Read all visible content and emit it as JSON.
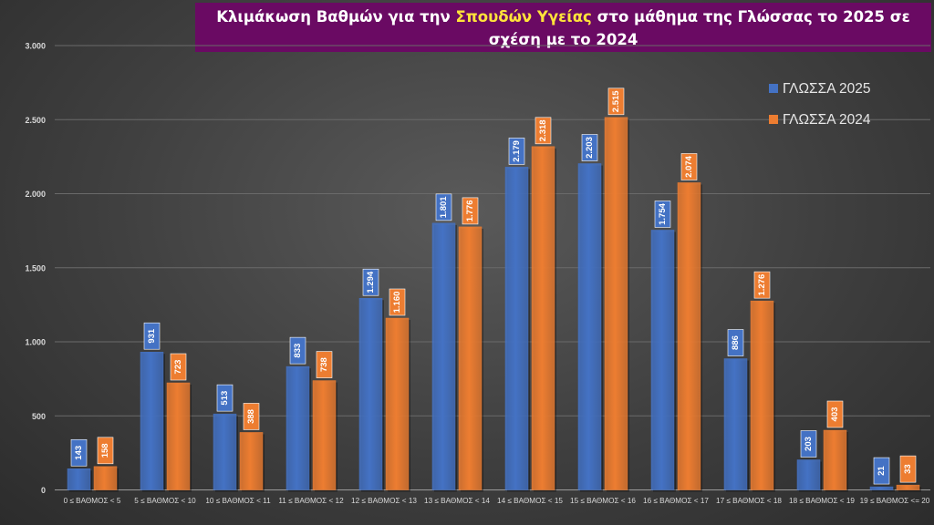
{
  "chart_data": {
    "type": "bar",
    "title_parts": {
      "before": "Κλιμάκωση Βαθμών για την ",
      "highlight": "Σπουδών Υγείας",
      "after": " στο μάθημα της Γλώσσας το 2025 σε σχέση με το 2024"
    },
    "categories": [
      "0 ≤ ΒΑΘΜΟΣ < 5",
      "5 ≤ ΒΑΘΜΟΣ < 10",
      "10 ≤ ΒΑΘΜΟΣ < 11",
      "11 ≤ ΒΑΘΜΟΣ < 12",
      "12 ≤ ΒΑΘΜΟΣ < 13",
      "13 ≤ ΒΑΘΜΟΣ < 14",
      "14 ≤ ΒΑΘΜΟΣ < 15",
      "15 ≤ ΒΑΘΜΟΣ < 16",
      "16 ≤ ΒΑΘΜΟΣ < 17",
      "17 ≤ ΒΑΘΜΟΣ < 18",
      "18 ≤ ΒΑΘΜΟΣ < 19",
      "19 ≤ ΒΑΘΜΟΣ <= 20"
    ],
    "series": [
      {
        "name": "ΓΛΩΣΣΑ 2025",
        "color": "#4472c4",
        "values": [
          143,
          931,
          513,
          833,
          1294,
          1801,
          2179,
          2203,
          1754,
          886,
          203,
          21
        ],
        "labels": [
          "143",
          "931",
          "513",
          "833",
          "1.294",
          "1.801",
          "2.179",
          "2.203",
          "1.754",
          "886",
          "203",
          "21"
        ]
      },
      {
        "name": "ΓΛΩΣΣΑ 2024",
        "color": "#ed7d31",
        "values": [
          158,
          723,
          388,
          738,
          1160,
          1776,
          2318,
          2515,
          2074,
          1276,
          403,
          33
        ],
        "labels": [
          "158",
          "723",
          "388",
          "738",
          "1.160",
          "1.776",
          "2.318",
          "2.515",
          "2.074",
          "1.276",
          "403",
          "33"
        ]
      }
    ],
    "yticks": [
      0,
      500,
      1000,
      1500,
      2000,
      2500,
      3000
    ],
    "ytick_labels": [
      "0",
      "500",
      "1.000",
      "1.500",
      "2.000",
      "2.500",
      "3.000"
    ],
    "ylim": [
      0,
      3000
    ],
    "grid": true,
    "legend_position": "top-right"
  }
}
